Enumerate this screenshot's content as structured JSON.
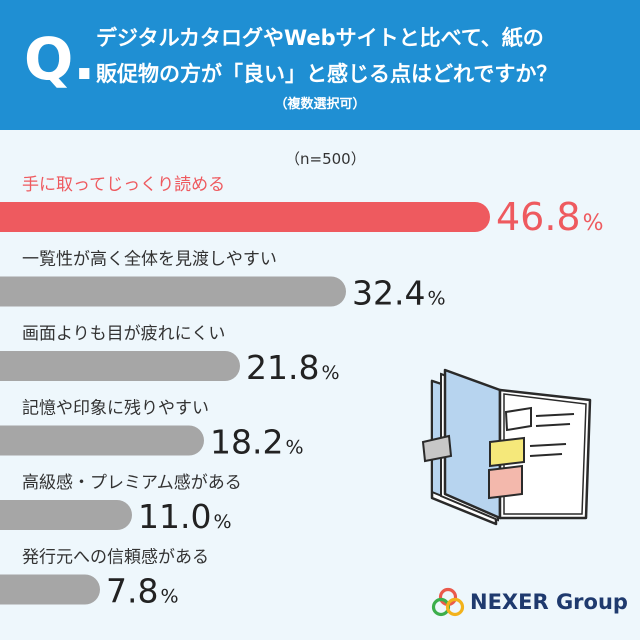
{
  "question": {
    "q_mark": "Q.",
    "line1": "デジタルカタログやWebサイトと比べて、紙の",
    "line2": "販促物の方が「良い」と感じる点はどれですか？",
    "note": "（複数選択可）"
  },
  "sample_size": "（n=500）",
  "logo": {
    "text": "NEXER Group"
  },
  "colors": {
    "header": "#1f8fd3",
    "highlight": "#ee5a5f",
    "bar": "#a6a6a6",
    "background": "#eef7fc"
  },
  "chart_data": {
    "type": "bar",
    "orientation": "horizontal",
    "categories": [
      "手に取ってじっくり読める",
      "一覧性が高く全体を見渡しやすい",
      "画面よりも目が疲れにくい",
      "記憶や印象に残りやすい",
      "高級感・プレミアム感がある",
      "発行元への信頼感がある"
    ],
    "values": [
      46.8,
      32.4,
      21.8,
      18.2,
      11.0,
      7.8
    ],
    "value_labels": [
      "46.8",
      "32.4",
      "21.8",
      "18.2",
      "11.0",
      "7.8"
    ],
    "unit": "%",
    "highlight_index": 0
  }
}
